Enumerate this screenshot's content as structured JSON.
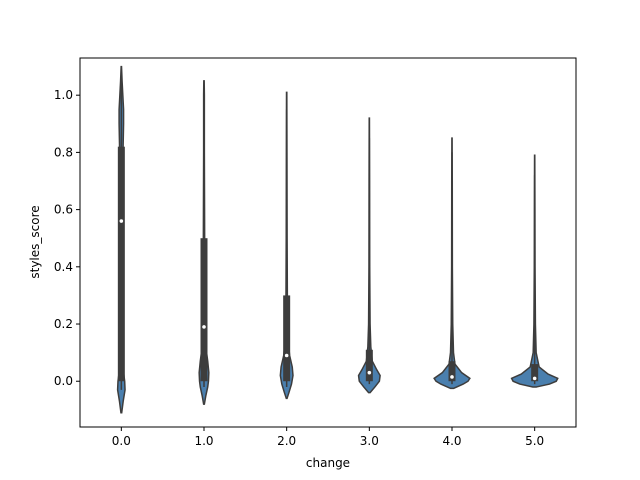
{
  "chart_data": {
    "type": "violin",
    "xlabel": "change",
    "ylabel": "styles_score",
    "categories": [
      "0.0",
      "1.0",
      "2.0",
      "3.0",
      "4.0",
      "5.0"
    ],
    "ylim": [
      -0.16,
      1.13
    ],
    "yticks": [
      "0.0",
      "0.2",
      "0.4",
      "0.6",
      "0.8",
      "1.0"
    ],
    "grid": false,
    "fill_color": "#4a7fae",
    "edge_color": "#3d3d3d",
    "violins": [
      {
        "category": "0.0",
        "min": -0.11,
        "max": 1.1,
        "q1": 0.0,
        "median": 0.56,
        "q3": 0.82,
        "whisker_low": -0.03,
        "whisker_high": 1.08,
        "profile": [
          [
            -0.11,
            0.01
          ],
          [
            -0.07,
            0.05
          ],
          [
            -0.03,
            0.1
          ],
          [
            0.0,
            0.09
          ],
          [
            0.03,
            0.06
          ],
          [
            0.08,
            0.04
          ],
          [
            0.15,
            0.03
          ],
          [
            0.3,
            0.02
          ],
          [
            0.5,
            0.02
          ],
          [
            0.7,
            0.03
          ],
          [
            0.8,
            0.045
          ],
          [
            0.9,
            0.06
          ],
          [
            0.95,
            0.06
          ],
          [
            1.0,
            0.04
          ],
          [
            1.05,
            0.02
          ],
          [
            1.1,
            0.005
          ]
        ]
      },
      {
        "category": "1.0",
        "min": -0.08,
        "max": 1.05,
        "q1": 0.0,
        "median": 0.19,
        "q3": 0.5,
        "whisker_low": -0.02,
        "whisker_high": 1.03,
        "profile": [
          [
            -0.08,
            0.01
          ],
          [
            -0.05,
            0.05
          ],
          [
            -0.02,
            0.1
          ],
          [
            0.0,
            0.12
          ],
          [
            0.03,
            0.13
          ],
          [
            0.07,
            0.1
          ],
          [
            0.12,
            0.05
          ],
          [
            0.2,
            0.03
          ],
          [
            0.4,
            0.02
          ],
          [
            0.6,
            0.015
          ],
          [
            0.8,
            0.01
          ],
          [
            1.0,
            0.01
          ],
          [
            1.05,
            0.005
          ]
        ]
      },
      {
        "category": "2.0",
        "min": -0.06,
        "max": 1.01,
        "q1": 0.0,
        "median": 0.09,
        "q3": 0.3,
        "whisker_low": -0.02,
        "whisker_high": 0.95,
        "profile": [
          [
            -0.06,
            0.01
          ],
          [
            -0.04,
            0.06
          ],
          [
            -0.01,
            0.13
          ],
          [
            0.02,
            0.17
          ],
          [
            0.05,
            0.15
          ],
          [
            0.09,
            0.08
          ],
          [
            0.14,
            0.04
          ],
          [
            0.25,
            0.02
          ],
          [
            0.5,
            0.012
          ],
          [
            0.8,
            0.008
          ],
          [
            1.01,
            0.004
          ]
        ]
      },
      {
        "category": "3.0",
        "min": -0.04,
        "max": 0.92,
        "q1": 0.0,
        "median": 0.03,
        "q3": 0.11,
        "whisker_low": -0.01,
        "whisker_high": 0.85,
        "profile": [
          [
            -0.04,
            0.02
          ],
          [
            -0.02,
            0.15
          ],
          [
            0.0,
            0.27
          ],
          [
            0.02,
            0.29
          ],
          [
            0.04,
            0.2
          ],
          [
            0.07,
            0.08
          ],
          [
            0.12,
            0.04
          ],
          [
            0.2,
            0.02
          ],
          [
            0.4,
            0.01
          ],
          [
            0.7,
            0.007
          ],
          [
            0.92,
            0.003
          ]
        ]
      },
      {
        "category": "4.0",
        "min": -0.025,
        "max": 0.85,
        "q1": 0.0,
        "median": 0.015,
        "q3": 0.07,
        "whisker_low": -0.01,
        "whisker_high": 0.8,
        "profile": [
          [
            -0.025,
            0.04
          ],
          [
            -0.01,
            0.3
          ],
          [
            0.0,
            0.43
          ],
          [
            0.01,
            0.48
          ],
          [
            0.03,
            0.26
          ],
          [
            0.06,
            0.08
          ],
          [
            0.1,
            0.04
          ],
          [
            0.2,
            0.02
          ],
          [
            0.4,
            0.01
          ],
          [
            0.7,
            0.007
          ],
          [
            0.85,
            0.003
          ]
        ]
      },
      {
        "category": "5.0",
        "min": -0.02,
        "max": 0.79,
        "q1": 0.0,
        "median": 0.01,
        "q3": 0.06,
        "whisker_low": -0.01,
        "whisker_high": 0.72,
        "profile": [
          [
            -0.02,
            0.05
          ],
          [
            -0.01,
            0.4
          ],
          [
            0.0,
            0.58
          ],
          [
            0.01,
            0.62
          ],
          [
            0.025,
            0.36
          ],
          [
            0.05,
            0.12
          ],
          [
            0.1,
            0.04
          ],
          [
            0.2,
            0.02
          ],
          [
            0.4,
            0.01
          ],
          [
            0.6,
            0.007
          ],
          [
            0.79,
            0.003
          ]
        ]
      }
    ]
  }
}
